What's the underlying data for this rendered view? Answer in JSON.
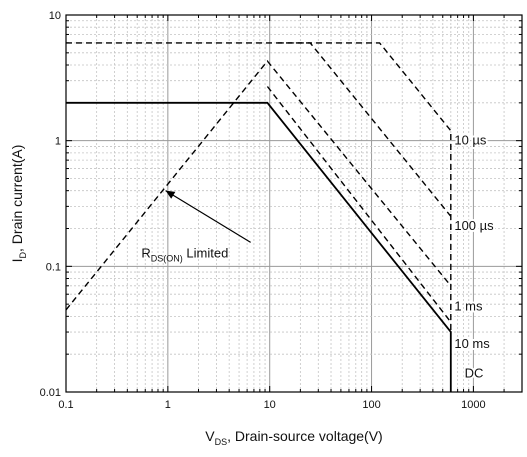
{
  "chart_data": {
    "type": "line",
    "x_scale": "log",
    "y_scale": "log",
    "xlim": [
      0.1,
      3000
    ],
    "ylim": [
      0.01,
      10
    ],
    "grid": true,
    "x_ticks": [
      {
        "value": 0.1,
        "label": "0.1"
      },
      {
        "value": 1,
        "label": "1"
      },
      {
        "value": 10,
        "label": "10"
      },
      {
        "value": 100,
        "label": "100"
      },
      {
        "value": 1000,
        "label": "1000"
      }
    ],
    "y_ticks": [
      {
        "value": 0.01,
        "label": "0.01"
      },
      {
        "value": 0.1,
        "label": "0.1"
      },
      {
        "value": 1,
        "label": "1"
      },
      {
        "value": 10,
        "label": "10"
      }
    ],
    "xlabel": {
      "main": "V",
      "sub": "DS",
      "rest": ", Drain-source voltage(V)"
    },
    "ylabel": {
      "main": "I",
      "sub": "D",
      "rest": ", Drain current(A)"
    },
    "series": [
      {
        "name": "10 µs",
        "style": "dashed",
        "points": [
          [
            0.1,
            6
          ],
          [
            120,
            6
          ],
          [
            600,
            1.2
          ],
          [
            600,
            0.03
          ]
        ]
      },
      {
        "name": "100 µs",
        "style": "dashed",
        "points": [
          [
            12,
            6
          ],
          [
            25,
            6
          ],
          [
            600,
            0.25
          ]
        ]
      },
      {
        "name": "1 ms",
        "style": "dashed",
        "points": [
          [
            0.1,
            0.045
          ],
          [
            9.5,
            4.3
          ],
          [
            600,
            0.07
          ]
        ]
      },
      {
        "name": "10 ms",
        "style": "dashed",
        "points": [
          [
            9.5,
            2.7
          ],
          [
            600,
            0.036
          ]
        ]
      },
      {
        "name": "DC",
        "style": "solid",
        "points": [
          [
            0.1,
            2
          ],
          [
            9.5,
            2
          ],
          [
            600,
            0.03
          ],
          [
            600,
            0.01
          ]
        ]
      }
    ],
    "series_labels": [
      {
        "text": "10 µs",
        "x": 650,
        "y": 1.0
      },
      {
        "text": "100 µs",
        "x": 650,
        "y": 0.21
      },
      {
        "text": "1 ms",
        "x": 650,
        "y": 0.048
      },
      {
        "text": "10 ms",
        "x": 650,
        "y": 0.024
      },
      {
        "text": "DC",
        "x": 820,
        "y": 0.014
      }
    ],
    "annotation": {
      "main": "R",
      "sub": "DS(ON)",
      "rest": " Limited",
      "arrow_tip": [
        0.95,
        0.4
      ],
      "arrow_tail": [
        6.5,
        0.155
      ],
      "text_at": [
        0.55,
        0.118
      ]
    }
  }
}
